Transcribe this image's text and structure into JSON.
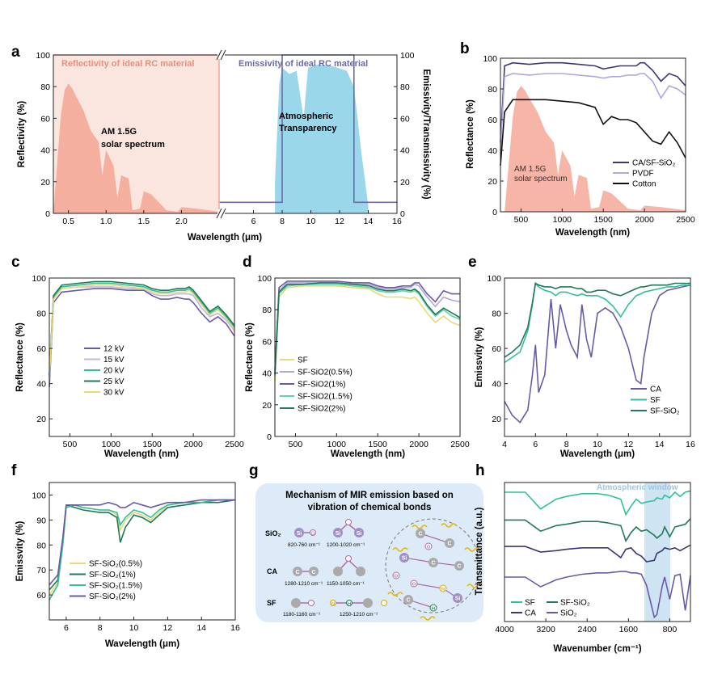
{
  "panel_labels": [
    "a",
    "b",
    "c",
    "d",
    "e",
    "f",
    "g",
    "h"
  ],
  "chart_data": [
    {
      "id": "a",
      "type": "area",
      "xlabel": "Wavelength (μm)",
      "ylabel": "Reflectivity (%)",
      "y2label": "Emissivity/Transmissivity (%)",
      "xticks_left": [
        "0.5",
        "1.0",
        "1.5",
        "2.0"
      ],
      "xticks_right": [
        "6",
        "8",
        "10",
        "12",
        "14",
        "16"
      ],
      "yticks": [
        "0",
        "20",
        "40",
        "60",
        "80",
        "100"
      ],
      "ylim": [
        0,
        100
      ],
      "annotations": {
        "reflectivity_title": "Reflectivity of ideal RC  material",
        "emissivity_title": "Emissivity of ideal RC  material",
        "solar_line1": "AM 1.5G",
        "solar_line2": "solar spectrum",
        "atm_line1": "Atmospheric",
        "atm_line2": "Transparency"
      },
      "solar_spectrum": {
        "x": [
          0.3,
          0.4,
          0.45,
          0.5,
          0.55,
          0.6,
          0.7,
          0.8,
          0.9,
          0.95,
          1.0,
          1.1,
          1.15,
          1.2,
          1.3,
          1.35,
          1.45,
          1.5,
          1.6,
          1.8,
          1.95,
          2.0,
          2.2,
          2.5
        ],
        "y": [
          0,
          62,
          78,
          82,
          79,
          74,
          65,
          52,
          45,
          24,
          40,
          30,
          10,
          24,
          22,
          2,
          3,
          14,
          12,
          2,
          1,
          4,
          3,
          1
        ]
      },
      "ideal_reflectivity": {
        "x": [
          0.3,
          2.5
        ],
        "y": [
          100,
          100
        ]
      },
      "atmospheric_transmittance": {
        "x": [
          7.5,
          7.8,
          8.0,
          8.5,
          9.0,
          9.5,
          9.8,
          10.5,
          11.5,
          12.5,
          13.0,
          13.5,
          14.0
        ],
        "y": [
          20,
          82,
          92,
          88,
          90,
          60,
          92,
          94,
          93,
          90,
          80,
          40,
          5
        ]
      },
      "ideal_emissivity": {
        "x": [
          4,
          8,
          8,
          13,
          13,
          16
        ],
        "y": [
          7,
          7,
          100,
          100,
          7,
          7
        ]
      }
    },
    {
      "id": "b",
      "type": "line",
      "xlabel": "Wavelength (nm)",
      "ylabel": "Reflectance (%)",
      "xticks": [
        "500",
        "1000",
        "1500",
        "2000",
        "2500"
      ],
      "yticks": [
        "0",
        "20",
        "40",
        "60",
        "80",
        "100"
      ],
      "xlim": [
        250,
        2500
      ],
      "ylim": [
        0,
        100
      ],
      "solar_label_line1": "AM 1.5G",
      "solar_label_line2": "solar spectrum",
      "x": [
        250,
        300,
        400,
        600,
        800,
        1000,
        1200,
        1400,
        1500,
        1600,
        1700,
        1800,
        1900,
        1950,
        2000,
        2100,
        2200,
        2300,
        2400,
        2500
      ],
      "series": [
        {
          "name": "CA/SF-SiO₂",
          "color": "#3d3575",
          "values": [
            45,
            95,
            97,
            96,
            97,
            97,
            96,
            95,
            93,
            94,
            95,
            95,
            95,
            97,
            97,
            92,
            85,
            90,
            88,
            82
          ]
        },
        {
          "name": "PVDF",
          "color": "#b2a6dc",
          "values": [
            40,
            88,
            90,
            89,
            90,
            90,
            89,
            88,
            87,
            88,
            88,
            89,
            89,
            90,
            90,
            85,
            74,
            82,
            80,
            76
          ]
        },
        {
          "name": "Cotton",
          "color": "#111111",
          "values": [
            30,
            65,
            73,
            73,
            73,
            72,
            71,
            68,
            57,
            62,
            60,
            60,
            58,
            55,
            52,
            46,
            44,
            52,
            45,
            35
          ]
        }
      ]
    },
    {
      "id": "c",
      "type": "line",
      "xlabel": "Wavelength (nm)",
      "ylabel": "Reflectance (%)",
      "xticks": [
        "500",
        "1000",
        "1500",
        "2000",
        "2500"
      ],
      "yticks": [
        "20",
        "40",
        "60",
        "80",
        "100"
      ],
      "xlim": [
        250,
        2500
      ],
      "ylim": [
        10,
        100
      ],
      "x": [
        250,
        300,
        400,
        600,
        800,
        1000,
        1200,
        1400,
        1500,
        1600,
        1700,
        1800,
        1900,
        1950,
        2000,
        2100,
        2200,
        2300,
        2400,
        2500
      ],
      "series": [
        {
          "name": "12 kV",
          "color": "#6a5aa6",
          "values": [
            38,
            86,
            92,
            93,
            94,
            94,
            93,
            93,
            90,
            88,
            88,
            89,
            88,
            88,
            86,
            80,
            75,
            78,
            74,
            67
          ]
        },
        {
          "name": "15 kV",
          "color": "#c9b3ee",
          "values": [
            42,
            88,
            94,
            95,
            95,
            95,
            94,
            94,
            91,
            90,
            90,
            91,
            91,
            91,
            90,
            83,
            78,
            80,
            76,
            70
          ]
        },
        {
          "name": "20 kV",
          "color": "#2ec09a",
          "values": [
            44,
            89,
            95,
            96,
            97,
            97,
            96,
            95,
            93,
            92,
            92,
            93,
            93,
            94,
            92,
            86,
            80,
            83,
            78,
            72
          ]
        },
        {
          "name": "25 kV",
          "color": "#1f7a55",
          "values": [
            45,
            90,
            96,
            97,
            98,
            98,
            97,
            96,
            94,
            93,
            93,
            94,
            94,
            95,
            93,
            87,
            81,
            84,
            79,
            73
          ]
        },
        {
          "name": "30 kV",
          "color": "#e8d878",
          "values": [
            43,
            88,
            94,
            95,
            96,
            96,
            95,
            94,
            92,
            91,
            91,
            92,
            92,
            93,
            91,
            85,
            79,
            82,
            77,
            71
          ]
        }
      ]
    },
    {
      "id": "d",
      "type": "line",
      "xlabel": "Wavelength (nm)",
      "ylabel": "Reflectance (%)",
      "xticks": [
        "500",
        "1000",
        "1500",
        "2000",
        "2500"
      ],
      "yticks": [
        "0",
        "20",
        "40",
        "60",
        "80",
        "100"
      ],
      "xlim": [
        250,
        2500
      ],
      "ylim": [
        0,
        100
      ],
      "x": [
        250,
        300,
        400,
        600,
        800,
        1000,
        1200,
        1400,
        1500,
        1600,
        1700,
        1800,
        1900,
        1950,
        2000,
        2100,
        2200,
        2300,
        2400,
        2500
      ],
      "series": [
        {
          "name": "SF",
          "color": "#e8d878",
          "values": [
            35,
            88,
            94,
            95,
            95,
            95,
            94,
            93,
            90,
            88,
            88,
            88,
            87,
            88,
            85,
            78,
            72,
            76,
            72,
            70
          ]
        },
        {
          "name": "SF-SiO2(0.5%)",
          "color": "#b2a6dc",
          "values": [
            40,
            92,
            97,
            97,
            97,
            97,
            96,
            96,
            94,
            93,
            93,
            94,
            94,
            96,
            95,
            88,
            82,
            88,
            86,
            85
          ]
        },
        {
          "name": "SF-SiO2(1%)",
          "color": "#6a5aa6",
          "values": [
            42,
            94,
            98,
            98,
            98,
            98,
            97,
            97,
            95,
            94,
            94,
            95,
            95,
            97,
            97,
            90,
            85,
            92,
            90,
            90
          ]
        },
        {
          "name": "SF-SiO2(1.5%)",
          "color": "#5fd3b0",
          "values": [
            38,
            90,
            95,
            96,
            96,
            96,
            95,
            94,
            92,
            91,
            91,
            92,
            91,
            92,
            90,
            82,
            76,
            80,
            76,
            74
          ]
        },
        {
          "name": "SF-SiO2(2%)",
          "color": "#1f7a55",
          "values": [
            39,
            91,
            96,
            96,
            97,
            97,
            96,
            95,
            93,
            92,
            92,
            93,
            92,
            93,
            91,
            83,
            77,
            81,
            78,
            75
          ]
        }
      ]
    },
    {
      "id": "e",
      "type": "line",
      "xlabel": "Wavelength (μm)",
      "ylabel": "Emissvity (%)",
      "xticks": [
        "4",
        "6",
        "8",
        "10",
        "12",
        "14",
        "16"
      ],
      "yticks": [
        "20",
        "40",
        "60",
        "80",
        "100"
      ],
      "xlim": [
        4,
        16
      ],
      "ylim": [
        10,
        100
      ],
      "x": [
        4,
        4.5,
        5,
        5.5,
        5.8,
        6,
        6.2,
        6.6,
        7,
        7.3,
        7.6,
        8,
        8.3,
        8.7,
        9,
        9.3,
        9.6,
        10,
        10.5,
        11,
        11.5,
        12,
        12.5,
        12.8,
        13,
        13.5,
        14,
        14.5,
        15,
        15.5,
        16
      ],
      "series": [
        {
          "name": "CA",
          "color": "#6a5aa6",
          "values": [
            30,
            22,
            18,
            25,
            45,
            62,
            35,
            45,
            88,
            60,
            85,
            70,
            62,
            55,
            85,
            65,
            55,
            80,
            83,
            80,
            72,
            60,
            42,
            40,
            55,
            80,
            90,
            93,
            94,
            95,
            96
          ]
        },
        {
          "name": "SF",
          "color": "#2ec09a",
          "values": [
            52,
            55,
            58,
            70,
            85,
            97,
            95,
            93,
            92,
            90,
            92,
            92,
            91,
            90,
            91,
            90,
            90,
            90,
            88,
            84,
            78,
            85,
            90,
            91,
            92,
            93,
            94,
            95,
            95,
            96,
            96
          ]
        },
        {
          "name": "SF-SiO₂",
          "color": "#1f7a55",
          "values": [
            55,
            58,
            62,
            72,
            86,
            97,
            96,
            95,
            95,
            94,
            95,
            95,
            95,
            94,
            94,
            92,
            92,
            93,
            93,
            91,
            90,
            92,
            94,
            95,
            95,
            96,
            96,
            96,
            97,
            97,
            97
          ]
        }
      ]
    },
    {
      "id": "f",
      "type": "line",
      "xlabel": "Wavelength (μm)",
      "ylabel": "Emissvity (%)",
      "xticks": [
        "6",
        "8",
        "10",
        "12",
        "14",
        "16"
      ],
      "yticks": [
        "60",
        "70",
        "80",
        "90",
        "100"
      ],
      "xlim": [
        5,
        16
      ],
      "ylim": [
        50,
        105
      ],
      "x": [
        5,
        5.5,
        5.8,
        6,
        6.5,
        7,
        8,
        8.5,
        9,
        9.2,
        9.5,
        10,
        10.5,
        11,
        11.5,
        12,
        13,
        14,
        15,
        16
      ],
      "series": [
        {
          "name": "SF-SiO₂(0.5%)",
          "color": "#e8d878",
          "values": [
            60,
            65,
            80,
            95,
            96,
            95,
            94,
            94,
            92,
            86,
            90,
            93,
            92,
            90,
            93,
            96,
            97,
            97,
            98,
            98
          ]
        },
        {
          "name": "SF-SiO₂(1%)",
          "color": "#1f7a55",
          "values": [
            62,
            66,
            82,
            96,
            95,
            94,
            93,
            93,
            91,
            81,
            87,
            92,
            91,
            89,
            92,
            95,
            96,
            97,
            97,
            98
          ]
        },
        {
          "name": "SF-SiO₂(1.5%)",
          "color": "#2ec09a",
          "values": [
            58,
            64,
            80,
            95,
            96,
            95,
            94,
            94,
            93,
            88,
            91,
            94,
            93,
            91,
            94,
            96,
            97,
            97,
            98,
            98
          ]
        },
        {
          "name": "SF-SiO₂(2%)",
          "color": "#6a5aa6",
          "values": [
            64,
            68,
            83,
            96,
            96,
            96,
            96,
            97,
            96,
            95,
            95,
            97,
            96,
            95,
            96,
            97,
            97,
            98,
            98,
            98
          ]
        }
      ]
    },
    {
      "id": "h",
      "type": "line",
      "xlabel": "Wavenumber (cm⁻¹)",
      "ylabel": "Transmittance (a.u.)",
      "xticks": [
        "4000",
        "3200",
        "2400",
        "1600",
        "800"
      ],
      "xlim": [
        4000,
        400
      ],
      "ylim": [
        0,
        10
      ],
      "window_label": "Atmospheric window",
      "x": [
        4000,
        3600,
        3300,
        3000,
        2800,
        2500,
        2200,
        2000,
        1750,
        1650,
        1550,
        1450,
        1350,
        1250,
        1100,
        1050,
        950,
        900,
        800,
        700,
        600,
        500,
        400
      ],
      "series": [
        {
          "name": "SF",
          "color": "#2ec09a",
          "values": [
            9.3,
            9.3,
            8.1,
            8.8,
            9.0,
            9.2,
            9.2,
            9.1,
            8.8,
            7.7,
            8.3,
            8.8,
            8.5,
            8.6,
            8.7,
            8.9,
            8.8,
            9.1,
            8.9,
            9.3,
            9.0,
            9.3,
            9.4
          ]
        },
        {
          "name": "SF-SiO₂",
          "color": "#1f7a55",
          "values": [
            7.3,
            7.3,
            6.5,
            6.9,
            7.0,
            7.2,
            7.2,
            7.1,
            6.9,
            5.8,
            6.4,
            6.8,
            6.5,
            6.6,
            6.2,
            6.0,
            6.3,
            6.8,
            6.1,
            6.8,
            6.9,
            7.0,
            7.4
          ]
        },
        {
          "name": "CA",
          "color": "#3d3575",
          "values": [
            5.4,
            5.4,
            5.0,
            5.1,
            5.2,
            5.3,
            5.3,
            5.3,
            4.6,
            5.2,
            5.3,
            4.9,
            4.7,
            4.3,
            4.4,
            4.9,
            5.1,
            5.3,
            5.2,
            5.3,
            5.1,
            5.3,
            5.5
          ]
        },
        {
          "name": "SiO₂",
          "color": "#6a5aa6",
          "values": [
            3.2,
            3.2,
            2.5,
            3.0,
            3.2,
            3.4,
            3.5,
            3.5,
            3.6,
            3.6,
            3.5,
            3.5,
            3.4,
            2.6,
            0.3,
            0.5,
            2.5,
            3.2,
            1.6,
            3.3,
            3.4,
            0.8,
            3.3
          ]
        }
      ]
    }
  ],
  "diagram_g": {
    "title_line1": "Mechanism of MIR emission based on",
    "title_line2": "vibration of chemical bonds",
    "rows": [
      {
        "name": "SiO₂",
        "band1": "820-760 cm⁻¹",
        "band2": "1200-1020 cm⁻¹"
      },
      {
        "name": "CA",
        "band1": "1280-1210 cm⁻¹",
        "band2": "1150-1050 cm⁻¹"
      },
      {
        "name": "SF",
        "band1": "1180-1160 cm⁻¹",
        "band2": "1250-1210 cm⁻¹"
      }
    ],
    "atoms": {
      "si": "Si",
      "o": "O",
      "c": "C",
      "n": "N",
      "h": "H"
    }
  }
}
